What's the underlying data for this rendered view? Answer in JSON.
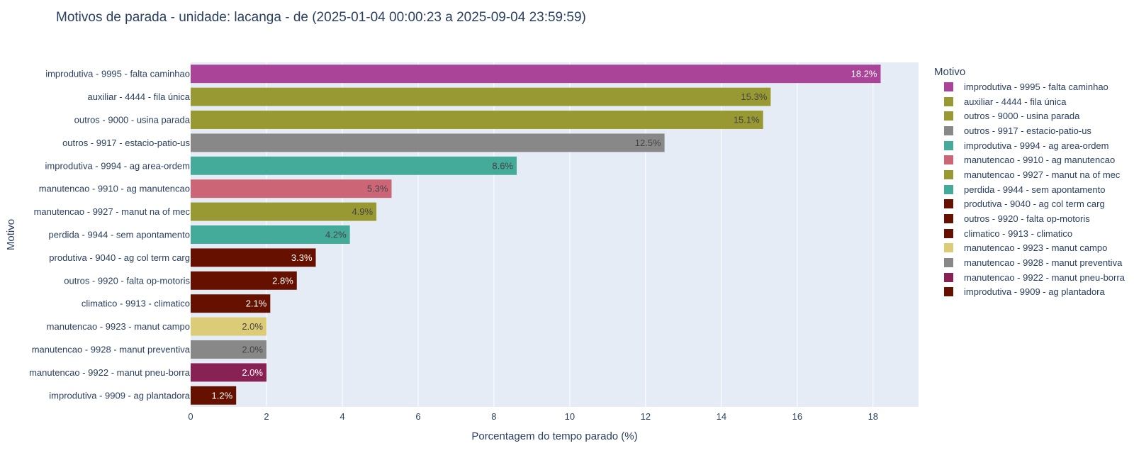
{
  "chart_data": {
    "type": "bar",
    "orientation": "horizontal",
    "title": "Motivos de parada - unidade: lacanga - de (2025-01-04 00:00:23 a 2025-09-04 23:59:59)",
    "xlabel": "Porcentagem do tempo parado (%)",
    "ylabel": "Motivo",
    "xlim": [
      0,
      19.2
    ],
    "xticks": [
      0,
      2,
      4,
      6,
      8,
      10,
      12,
      14,
      16,
      18
    ],
    "grid": true,
    "legend_title": "Motivo",
    "legend_position": "right",
    "plot_bgcolor": "#e5ecf6",
    "categories": [
      "improdutiva - 9995 - falta caminhao",
      "auxiliar - 4444 - fila única",
      "outros - 9000 - usina  parada",
      "outros - 9917 - estacio-patio-us",
      "improdutiva - 9994 - ag area-ordem",
      "manutencao - 9910 - ag manutencao",
      "manutencao - 9927 - manut na of mec",
      "perdida - 9944 - sem apontamento",
      "produtiva - 9040 - ag col term carg",
      "outros - 9920 - falta op-motoris",
      "climatico - 9913 - climatico",
      "manutencao - 9923 - manut campo",
      "manutencao - 9928 - manut preventiva",
      "manutencao - 9922 - manut pneu-borra",
      "improdutiva - 9909 - ag plantadora"
    ],
    "values": [
      18.2,
      15.3,
      15.1,
      12.5,
      8.6,
      5.3,
      4.9,
      4.2,
      3.3,
      2.8,
      2.1,
      2.0,
      2.0,
      2.0,
      1.2
    ],
    "text_labels": [
      "18.2%",
      "15.3%",
      "15.1%",
      "12.5%",
      "8.6%",
      "5.3%",
      "4.9%",
      "4.2%",
      "3.3%",
      "2.8%",
      "2.1%",
      "2.0%",
      "2.0%",
      "2.0%",
      "1.2%"
    ],
    "colors": [
      "#aa4499",
      "#999933",
      "#999933",
      "#888888",
      "#44aa99",
      "#cc6677",
      "#999933",
      "#44aa99",
      "#661100",
      "#661100",
      "#661100",
      "#ddcc77",
      "#888888",
      "#882255",
      "#661100"
    ],
    "label_colors": [
      "#ffffff",
      "#444444",
      "#444444",
      "#444444",
      "#444444",
      "#444444",
      "#444444",
      "#444444",
      "#ffffff",
      "#ffffff",
      "#ffffff",
      "#444444",
      "#444444",
      "#ffffff",
      "#ffffff"
    ]
  }
}
